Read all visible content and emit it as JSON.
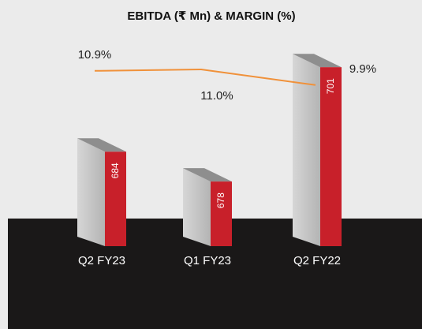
{
  "chart_data": {
    "type": "bar",
    "title": "EBITDA (₹ Mn) & MARGIN (%)",
    "categories": [
      "Q2 FY23",
      "Q1 FY23",
      "Q2 FY22"
    ],
    "series": [
      {
        "name": null,
        "color": "#c8202a",
        "values": [
          684,
          678,
          701
        ]
      },
      {
        "name": null,
        "color": "#f0913a",
        "axis": "y2",
        "type": "line",
        "values": [
          10.9,
          11.0,
          9.9
        ],
        "value_labels": [
          "10.9%",
          "11.0%",
          "9.9%"
        ]
      }
    ],
    "ylim": [
      665,
      705
    ],
    "y2lim": [
      9.5,
      11.5
    ]
  }
}
